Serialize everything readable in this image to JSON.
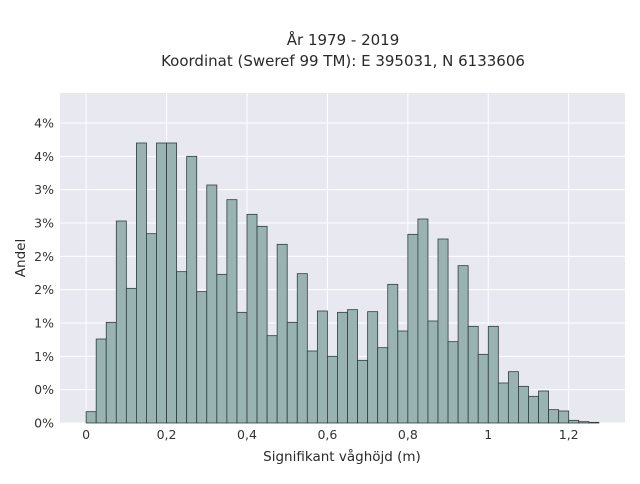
{
  "chart_data": {
    "type": "bar",
    "title_lines": [
      "År 1979 - 2019",
      "Koordinat (Sweref 99 TM): E 395031, N 6133606"
    ],
    "xlabel": "Signifikant våghöjd (m)",
    "ylabel": "Andel",
    "xlim": [
      -0.065,
      1.34
    ],
    "ylim": [
      0,
      0.0495
    ],
    "x_ticks": [
      0,
      0.2,
      0.4,
      0.6,
      0.8,
      1.0,
      1.2
    ],
    "x_tick_labels": [
      "0",
      "0,2",
      "0,4",
      "0,6",
      "0,8",
      "1",
      "1,2"
    ],
    "y_ticks": [
      0,
      0.005,
      0.01,
      0.015,
      0.02,
      0.025,
      0.03,
      0.035,
      0.04,
      0.045
    ],
    "y_tick_labels": [
      "0%",
      "0%",
      "1%",
      "1%",
      "2%",
      "2%",
      "3%",
      "3%",
      "4%",
      "4%"
    ],
    "grid": true,
    "bin_width": 0.025,
    "bin_starts": [
      0.0,
      0.025,
      0.05,
      0.075,
      0.1,
      0.125,
      0.15,
      0.175,
      0.2,
      0.225,
      0.25,
      0.275,
      0.3,
      0.325,
      0.35,
      0.375,
      0.4,
      0.425,
      0.45,
      0.475,
      0.5,
      0.525,
      0.55,
      0.575,
      0.6,
      0.625,
      0.65,
      0.675,
      0.7,
      0.725,
      0.75,
      0.775,
      0.8,
      0.825,
      0.85,
      0.875,
      0.9,
      0.925,
      0.95,
      0.975,
      1.0,
      1.025,
      1.05,
      1.075,
      1.1,
      1.125,
      1.15,
      1.175,
      1.2,
      1.225,
      1.25
    ],
    "values": [
      0.0017,
      0.0126,
      0.0151,
      0.0303,
      0.0202,
      0.042,
      0.0284,
      0.042,
      0.042,
      0.0227,
      0.04,
      0.0197,
      0.0357,
      0.0223,
      0.0335,
      0.0166,
      0.0313,
      0.0295,
      0.0131,
      0.0268,
      0.0151,
      0.0224,
      0.0108,
      0.0168,
      0.01,
      0.0166,
      0.017,
      0.0094,
      0.0167,
      0.0113,
      0.0208,
      0.0138,
      0.0283,
      0.0306,
      0.0153,
      0.0276,
      0.0122,
      0.0236,
      0.0145,
      0.0103,
      0.0145,
      0.006,
      0.0077,
      0.0055,
      0.004,
      0.0048,
      0.002,
      0.0018,
      0.0004,
      0.0002,
      0.0001
    ],
    "colors": {
      "bar_fill": "#99b3b3",
      "bar_edge": "#2f3d3d",
      "plot_background": "#e8e8f0",
      "grid": "#ffffff"
    }
  }
}
